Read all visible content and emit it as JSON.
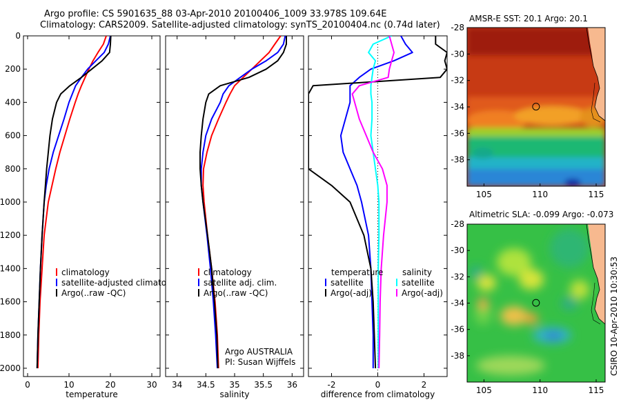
{
  "title": {
    "line1": "Argo profile: CS 5901635_88 03-Apr-2010 20100406_1009 33.978S 109.64E",
    "line2": "Climatology: CARS2009. Satellite-adjusted climatology: synTS_20100404.nc (0.74d later)"
  },
  "side_text": "CSIRO 10-Apr-2010 10:30:53",
  "colors": {
    "climatology": "#ff0000",
    "satellite": "#0000ff",
    "argo": "#000000",
    "salinity_satellite": "#00ffff",
    "salinity_argo": "#ff00ff",
    "map_marker": "#000000"
  },
  "depth_ticks": [
    "0",
    "200",
    "400",
    "600",
    "800",
    "1000",
    "1200",
    "1400",
    "1600",
    "1800",
    "2000"
  ],
  "chart_data": [
    {
      "id": "temperature",
      "type": "line",
      "xlabel": "temperature",
      "xlim": [
        -1,
        32
      ],
      "ylim": [
        2050,
        0
      ],
      "y_reversed": true,
      "xticks": [
        "0",
        "10",
        "20",
        "30"
      ],
      "xtick_values": [
        0,
        10,
        20,
        30
      ],
      "depth": [
        0,
        50,
        100,
        150,
        200,
        250,
        300,
        350,
        400,
        500,
        600,
        700,
        800,
        900,
        1000,
        1200,
        1400,
        1600,
        1800,
        2000
      ],
      "series": [
        {
          "name": "climatology",
          "color": "#ff0000",
          "values": [
            19.0,
            18.3,
            17.0,
            15.8,
            14.8,
            13.9,
            13.0,
            12.2,
            11.5,
            10.2,
            9.0,
            7.8,
            6.8,
            5.9,
            5.0,
            4.0,
            3.5,
            3.0,
            2.7,
            2.5
          ]
        },
        {
          "name": "satellite-adjusted climatology",
          "color": "#0000ff",
          "values": [
            20.0,
            19.5,
            18.5,
            16.5,
            14.5,
            13.0,
            11.6,
            10.8,
            10.0,
            8.8,
            7.5,
            6.2,
            5.2,
            4.5,
            4.0,
            3.5,
            3.1,
            2.8,
            2.5,
            2.3
          ]
        },
        {
          "name": "Argo(..raw -QC)",
          "color": "#000000",
          "values": [
            20.1,
            20.0,
            19.8,
            18.0,
            15.5,
            13.0,
            10.2,
            8.0,
            7.0,
            6.0,
            5.4,
            5.0,
            4.6,
            4.3,
            4.0,
            3.5,
            3.1,
            2.8,
            2.5,
            2.3
          ]
        }
      ],
      "legend": [
        "climatology",
        "satellite-adjusted climatolog",
        "Argo(..raw -QC)"
      ]
    },
    {
      "id": "salinity",
      "type": "line",
      "xlabel": "salinity",
      "xlim": [
        33.8,
        36.2
      ],
      "ylim": [
        2050,
        0
      ],
      "y_reversed": true,
      "xticks": [
        "34",
        "34.5",
        "35",
        "35.5",
        "36"
      ],
      "xtick_values": [
        34,
        34.5,
        35,
        35.5,
        36
      ],
      "depth": [
        0,
        50,
        100,
        150,
        200,
        250,
        300,
        350,
        400,
        500,
        600,
        700,
        800,
        900,
        1000,
        1200,
        1400,
        1600,
        1800,
        2000
      ],
      "series": [
        {
          "name": "climatology",
          "color": "#ff0000",
          "values": [
            35.8,
            35.7,
            35.6,
            35.45,
            35.3,
            35.15,
            35.0,
            34.92,
            34.85,
            34.72,
            34.6,
            34.52,
            34.46,
            34.45,
            34.47,
            34.53,
            34.6,
            34.66,
            34.7,
            34.72
          ]
        },
        {
          "name": "satellite adj. clim.",
          "color": "#0000ff",
          "values": [
            35.88,
            35.85,
            35.75,
            35.55,
            35.3,
            35.1,
            34.9,
            34.8,
            34.75,
            34.6,
            34.5,
            34.45,
            34.42,
            34.42,
            34.45,
            34.52,
            34.58,
            34.63,
            34.67,
            34.7
          ]
        },
        {
          "name": "Argo(..raw -QC)",
          "color": "#000000",
          "values": [
            35.9,
            35.9,
            35.85,
            35.75,
            35.55,
            35.25,
            34.75,
            34.55,
            34.5,
            34.45,
            34.42,
            34.4,
            34.4,
            34.42,
            34.45,
            34.53,
            34.6,
            34.65,
            34.69,
            34.71
          ]
        }
      ],
      "legend": [
        "climatology",
        "satellite adj. clim.",
        "Argo(..raw -QC)"
      ],
      "annotation": [
        "Argo AUSTRALIA",
        "PI: Susan Wijffels"
      ]
    },
    {
      "id": "difference",
      "type": "line",
      "xlabel": "difference from climatology",
      "xlim": [
        -3,
        3
      ],
      "ylim": [
        2050,
        0
      ],
      "y_reversed": true,
      "xticks": [
        "-2",
        "0",
        "2"
      ],
      "xtick_values": [
        -2,
        0,
        2
      ],
      "zero_line": true,
      "depth": [
        0,
        50,
        100,
        150,
        200,
        250,
        300,
        350,
        400,
        500,
        600,
        700,
        800,
        900,
        1000,
        1200,
        1400,
        1600,
        1800,
        2000
      ],
      "series": [
        {
          "name": "temperature satellite",
          "color": "#0000ff",
          "values": [
            1.0,
            1.2,
            1.5,
            0.7,
            -0.3,
            -0.8,
            -1.2,
            -1.2,
            -1.2,
            -1.4,
            -1.6,
            -1.5,
            -1.2,
            -0.9,
            -0.7,
            -0.4,
            -0.3,
            -0.25,
            -0.2,
            -0.2
          ]
        },
        {
          "name": "temperature Argo(-adj)",
          "color": "#000000",
          "values": [
            2.5,
            2.5,
            3.0,
            2.9,
            3.0,
            2.7,
            -2.8,
            -3.0,
            -3.0,
            -3.0,
            -3.0,
            -3.0,
            -3.0,
            -2.0,
            -1.2,
            -0.6,
            -0.3,
            -0.2,
            -0.15,
            -0.1
          ]
        },
        {
          "name": "salinity satellite",
          "color": "#00ffff",
          "values": [
            0.6,
            -0.2,
            -0.4,
            -0.1,
            -0.2,
            -0.25,
            -0.3,
            -0.3,
            -0.25,
            -0.25,
            -0.3,
            -0.2,
            -0.1,
            0.0,
            0.05,
            0.05,
            0.02,
            0.02,
            0.02,
            0.02
          ]
        },
        {
          "name": "salinity Argo(-adj)",
          "color": "#ff00ff",
          "values": [
            0.5,
            0.6,
            0.7,
            0.6,
            0.5,
            0.45,
            -0.8,
            -1.1,
            -1.0,
            -0.8,
            -0.5,
            -0.2,
            0.2,
            0.4,
            0.4,
            0.25,
            0.15,
            0.1,
            0.08,
            0.05
          ]
        }
      ],
      "legend_groups": [
        {
          "title": "temperature",
          "items": [
            "satellite",
            "Argo(-adj)"
          ]
        },
        {
          "title": "salinity",
          "items": [
            "satellite",
            "Argo(-adj)"
          ]
        }
      ]
    },
    {
      "id": "sst_map",
      "type": "heatmap",
      "title": "AMSR-E SST: 20.1 Argo: 20.1",
      "xlim": [
        103.5,
        115.8
      ],
      "ylim": [
        -40,
        -28
      ],
      "xticks": [
        "105",
        "110",
        "115"
      ],
      "xtick_values": [
        105,
        110,
        115
      ],
      "yticks": [
        "-28",
        "-30",
        "-32",
        "-34",
        "-36",
        "-38"
      ],
      "ytick_values": [
        -28,
        -30,
        -32,
        -34,
        -36,
        -38
      ],
      "marker": {
        "lon": 109.64,
        "lat": -33.978
      }
    },
    {
      "id": "sla_map",
      "type": "heatmap",
      "title": "Altimetric SLA: -0.099 Argo: -0.073",
      "xlim": [
        103.5,
        115.8
      ],
      "ylim": [
        -40,
        -28
      ],
      "xticks": [
        "105",
        "110",
        "115"
      ],
      "xtick_values": [
        105,
        110,
        115
      ],
      "yticks": [
        "-28",
        "-30",
        "-32",
        "-34",
        "-36",
        "-38"
      ],
      "ytick_values": [
        -28,
        -30,
        -32,
        -34,
        -36,
        -38
      ],
      "marker": {
        "lon": 109.64,
        "lat": -33.978
      }
    }
  ]
}
